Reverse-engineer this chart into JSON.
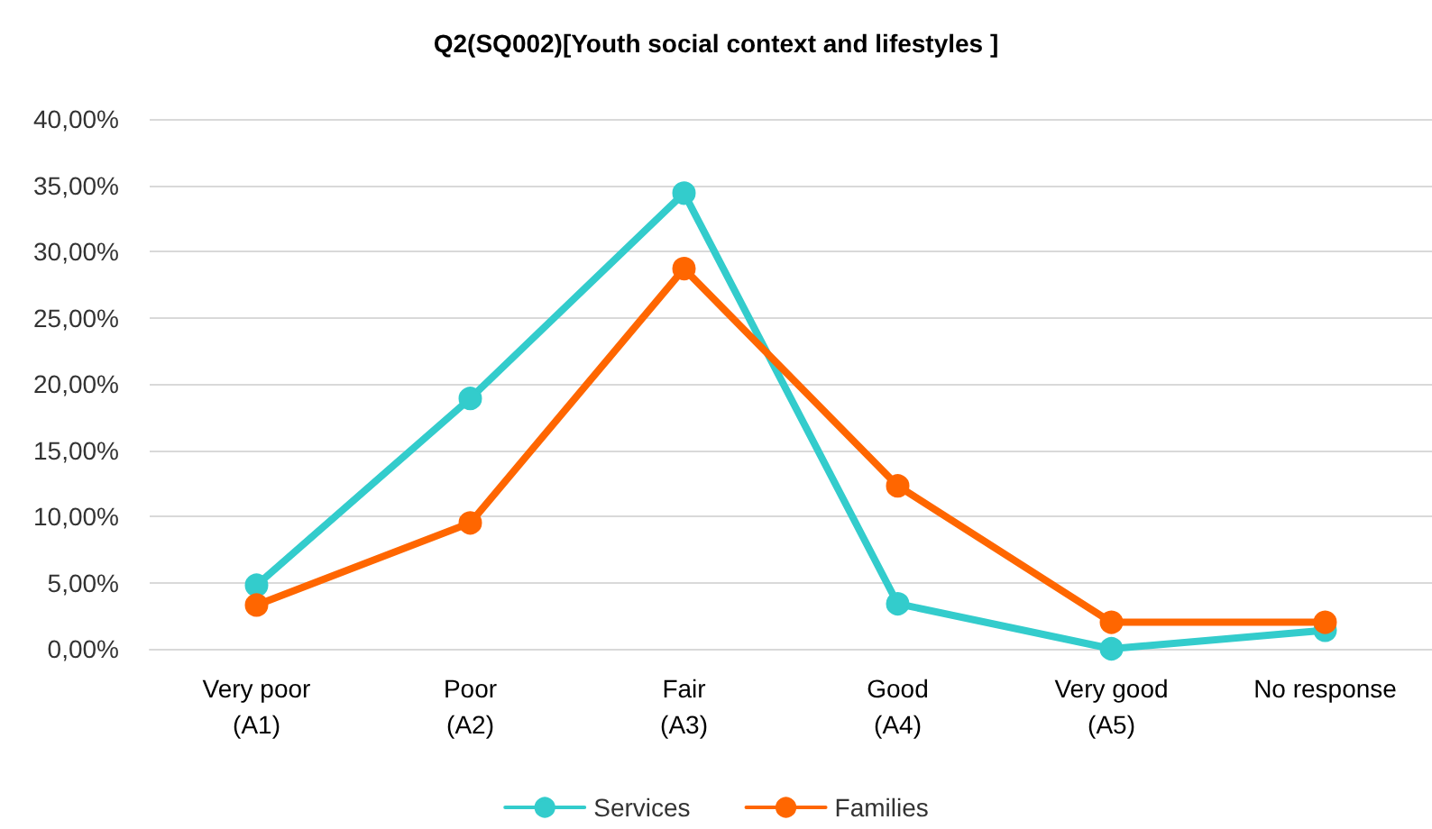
{
  "chart_data": {
    "type": "line",
    "title": "Q2(SQ002)[Youth social context and lifestyles ]",
    "categories": [
      "Very poor (A1)",
      "Poor (A2)",
      "Fair (A3)",
      "Good (A4)",
      "Very good (A5)",
      "No response"
    ],
    "series": [
      {
        "name": "Services",
        "color": "#33cccc",
        "values": [
          4.8,
          18.9,
          34.4,
          3.4,
          0,
          1.4
        ]
      },
      {
        "name": "Families",
        "color": "#ff6600",
        "values": [
          3.3,
          9.5,
          28.7,
          12.3,
          2.0,
          2.0
        ]
      }
    ],
    "ylim": [
      0,
      40
    ],
    "yticks": [
      {
        "value": 0,
        "label": "0,00%"
      },
      {
        "value": 5,
        "label": "5,00%"
      },
      {
        "value": 10,
        "label": "10,00%"
      },
      {
        "value": 15,
        "label": "15,00%"
      },
      {
        "value": 20,
        "label": "20,00%"
      },
      {
        "value": 25,
        "label": "25,00%"
      },
      {
        "value": 30,
        "label": "30,00%"
      },
      {
        "value": 35,
        "label": "35,00%"
      },
      {
        "value": 40,
        "label": "40,00%"
      }
    ],
    "grid": "y",
    "legend": "bottom",
    "marker": "circle",
    "line_style": "solid"
  }
}
